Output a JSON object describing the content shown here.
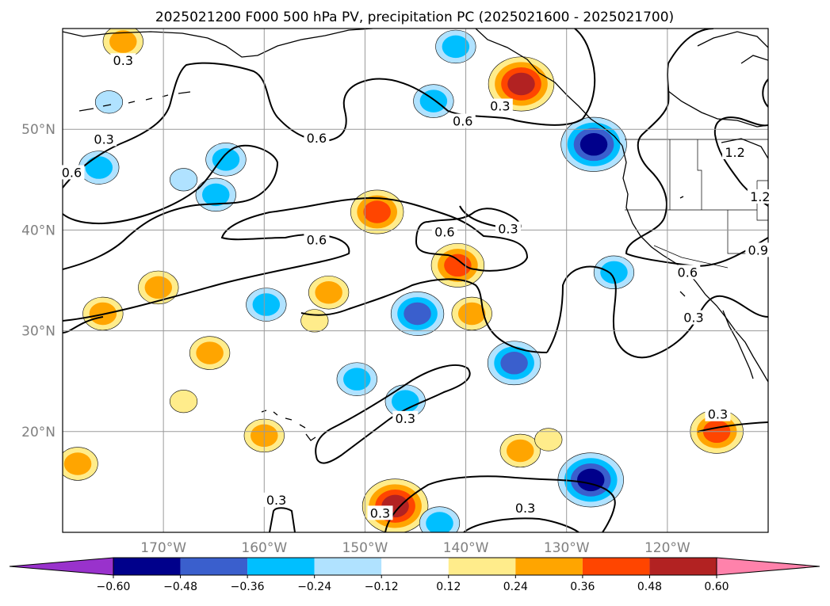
{
  "chart_data": {
    "type": "map-contour",
    "title": "2025021200 F000 500 hPa PV, precipitation PC (2025021600 - 2025021700)",
    "lat_ticks": [
      {
        "value": 50,
        "label": "50°N"
      },
      {
        "value": 40,
        "label": "40°N"
      },
      {
        "value": 30,
        "label": "30°N"
      },
      {
        "value": 20,
        "label": "20°N"
      }
    ],
    "lon_ticks": [
      {
        "value": -170,
        "label": "170°W"
      },
      {
        "value": -160,
        "label": "160°W"
      },
      {
        "value": -150,
        "label": "150°W"
      },
      {
        "value": -140,
        "label": "140°W"
      },
      {
        "value": -130,
        "label": "130°W"
      },
      {
        "value": -120,
        "label": "120°W"
      }
    ],
    "extent": {
      "lon_min": -180,
      "lon_max": -110,
      "lat_min": 10,
      "lat_max": 60
    },
    "grid": true,
    "colorbar": {
      "levels": [
        -0.6,
        -0.48,
        -0.36,
        -0.24,
        -0.12,
        0.12,
        0.24,
        0.36,
        0.48,
        0.6
      ],
      "labels": [
        "−0.60",
        "−0.48",
        "−0.36",
        "−0.24",
        "−0.12",
        "0.12",
        "0.24",
        "0.36",
        "0.48",
        "0.60"
      ],
      "colors": [
        "#9932CC",
        "#00008B",
        "#3A5FCD",
        "#00BFFF",
        "#B0E2FF",
        "#FFFFFF",
        "#FFEC8B",
        "#FFA500",
        "#FF4500",
        "#B22222",
        "#FF82AB"
      ]
    },
    "pv_contour_labels": [
      {
        "text": "0.3",
        "lon": -174.0,
        "lat": 56.6
      },
      {
        "text": "0.3",
        "lon": -175.9,
        "lat": 48.8
      },
      {
        "text": "0.6",
        "lon": -179.1,
        "lat": 45.5
      },
      {
        "text": "0.6",
        "lon": -154.8,
        "lat": 48.9
      },
      {
        "text": "0.6",
        "lon": -140.3,
        "lat": 50.6
      },
      {
        "text": "0.3",
        "lon": -136.6,
        "lat": 52.1
      },
      {
        "text": "0.6",
        "lon": -142.1,
        "lat": 39.6
      },
      {
        "text": "0.3",
        "lon": -135.8,
        "lat": 39.9
      },
      {
        "text": "0.6",
        "lon": -154.8,
        "lat": 38.8
      },
      {
        "text": "0.6",
        "lon": -118.0,
        "lat": 35.6
      },
      {
        "text": "0.3",
        "lon": -117.4,
        "lat": 31.1
      },
      {
        "text": "0.9",
        "lon": -111.0,
        "lat": 37.8
      },
      {
        "text": "1.2",
        "lon": -113.3,
        "lat": 47.5
      },
      {
        "text": "1.2",
        "lon": -110.8,
        "lat": 43.1
      },
      {
        "text": "0.3",
        "lon": -146.0,
        "lat": 21.1
      },
      {
        "text": "0.3",
        "lon": -115.0,
        "lat": 21.5
      },
      {
        "text": "0.3",
        "lon": -158.8,
        "lat": 13.0
      },
      {
        "text": "0.3",
        "lon": -148.5,
        "lat": 11.7
      },
      {
        "text": "0.3",
        "lon": -134.1,
        "lat": 12.2
      }
    ],
    "precip_features": [
      {
        "lon": -174.0,
        "lat": 58.7,
        "value": 0.28
      },
      {
        "lon": -176.0,
        "lat": 31.7,
        "value": 0.3
      },
      {
        "lon": -170.5,
        "lat": 34.3,
        "value": 0.28
      },
      {
        "lon": -178.5,
        "lat": 16.8,
        "value": 0.3
      },
      {
        "lon": -165.4,
        "lat": 27.8,
        "value": 0.25
      },
      {
        "lon": -168.0,
        "lat": 23.0,
        "value": 0.2
      },
      {
        "lon": -160.0,
        "lat": 19.6,
        "value": 0.28
      },
      {
        "lon": -155.0,
        "lat": 31.0,
        "value": 0.2
      },
      {
        "lon": -153.6,
        "lat": 33.8,
        "value": 0.3
      },
      {
        "lon": -148.8,
        "lat": 41.8,
        "value": 0.4
      },
      {
        "lon": -140.8,
        "lat": 36.5,
        "value": 0.42
      },
      {
        "lon": -139.4,
        "lat": 31.7,
        "value": 0.28
      },
      {
        "lon": -134.5,
        "lat": 54.5,
        "value": 0.5
      },
      {
        "lon": -147.0,
        "lat": 12.6,
        "value": 0.48
      },
      {
        "lon": -134.6,
        "lat": 18.1,
        "value": 0.28
      },
      {
        "lon": -131.8,
        "lat": 19.2,
        "value": 0.15
      },
      {
        "lon": -115.1,
        "lat": 20.0,
        "value": 0.45
      },
      {
        "lon": -176.4,
        "lat": 46.2,
        "value": -0.35
      },
      {
        "lon": -163.8,
        "lat": 47.0,
        "value": -0.3
      },
      {
        "lon": -164.8,
        "lat": 43.5,
        "value": -0.25
      },
      {
        "lon": -175.4,
        "lat": 52.7,
        "value": -0.2
      },
      {
        "lon": -168.0,
        "lat": 45.0,
        "value": -0.2
      },
      {
        "lon": -159.8,
        "lat": 32.6,
        "value": -0.3
      },
      {
        "lon": -144.8,
        "lat": 31.7,
        "value": -0.4
      },
      {
        "lon": -150.8,
        "lat": 25.2,
        "value": -0.28
      },
      {
        "lon": -146.0,
        "lat": 23.0,
        "value": -0.3
      },
      {
        "lon": -143.2,
        "lat": 52.8,
        "value": -0.28
      },
      {
        "lon": -141.0,
        "lat": 58.2,
        "value": -0.3
      },
      {
        "lon": -127.3,
        "lat": 48.5,
        "value": -0.55
      },
      {
        "lon": -125.3,
        "lat": 35.8,
        "value": -0.35
      },
      {
        "lon": -135.2,
        "lat": 26.8,
        "value": -0.45
      },
      {
        "lon": -127.6,
        "lat": 15.2,
        "value": -0.5
      },
      {
        "lon": -142.6,
        "lat": 10.9,
        "value": -0.3
      }
    ]
  }
}
